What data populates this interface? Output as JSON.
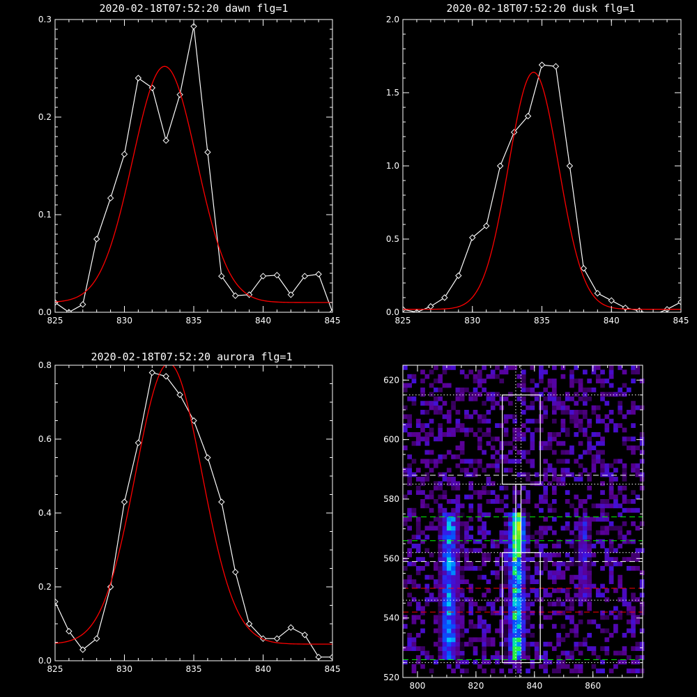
{
  "chart_data": [
    {
      "id": "dawn",
      "type": "line",
      "title": "2020-02-18T07:52:20 dawn flg=1",
      "xlim": [
        825,
        845
      ],
      "ylim": [
        0,
        0.3
      ],
      "xticks": [
        825,
        830,
        835,
        840,
        845
      ],
      "xtick_labels": [
        "825",
        "830",
        "835",
        "840",
        "845"
      ],
      "yticks": [
        0,
        0.1,
        0.2,
        0.3
      ],
      "ytick_labels": [
        "0.0",
        "0.1",
        "0.2",
        "0.3"
      ],
      "x_minor": 1,
      "y_minor": 0.01,
      "series": [
        {
          "style": "line-diamond",
          "color": "#ffffff",
          "x": [
            825,
            826,
            827,
            828,
            829,
            830,
            831,
            832,
            833,
            834,
            835,
            836,
            837,
            838,
            839,
            840,
            841,
            842,
            843,
            844,
            845
          ],
          "y": [
            0.01,
            0.0,
            0.008,
            0.075,
            0.117,
            0.162,
            0.24,
            0.23,
            0.176,
            0.223,
            0.293,
            0.164,
            0.037,
            0.017,
            0.018,
            0.037,
            0.038,
            0.018,
            0.037,
            0.039,
            0.0
          ]
        },
        {
          "style": "gaussian",
          "color": "#ff0000",
          "amplitude": 0.242,
          "center": 832.9,
          "sigma": 2.3,
          "baseline": 0.01,
          "x_range": [
            825,
            845
          ]
        }
      ]
    },
    {
      "id": "dusk",
      "type": "line",
      "title": "2020-02-18T07:52:20 dusk flg=1",
      "xlim": [
        825,
        845
      ],
      "ylim": [
        0,
        2.0
      ],
      "xticks": [
        825,
        830,
        835,
        840,
        845
      ],
      "xtick_labels": [
        "825",
        "830",
        "835",
        "840",
        "845"
      ],
      "yticks": [
        0,
        0.5,
        1.0,
        1.5,
        2.0
      ],
      "ytick_labels": [
        "0.0",
        "0.5",
        "1.0",
        "1.5",
        "2.0"
      ],
      "x_minor": 1,
      "y_minor": 0.1,
      "series": [
        {
          "style": "line-diamond",
          "color": "#ffffff",
          "x": [
            825,
            826,
            827,
            828,
            829,
            830,
            831,
            832,
            833,
            834,
            835,
            836,
            837,
            838,
            839,
            840,
            841,
            842,
            843,
            844,
            845
          ],
          "y": [
            0.02,
            0.0,
            0.04,
            0.1,
            0.25,
            0.51,
            0.59,
            1.0,
            1.23,
            1.34,
            1.69,
            1.68,
            1.0,
            0.3,
            0.13,
            0.08,
            0.03,
            0.01,
            -0.02,
            0.02,
            0.07
          ]
        },
        {
          "style": "gaussian",
          "color": "#ff0000",
          "amplitude": 1.62,
          "center": 834.4,
          "sigma": 1.8,
          "baseline": 0.02,
          "x_range": [
            825,
            845
          ]
        }
      ]
    },
    {
      "id": "aurora",
      "type": "line",
      "title": "2020-02-18T07:52:20 aurora flg=1",
      "xlim": [
        825,
        845
      ],
      "ylim": [
        0,
        0.8
      ],
      "xticks": [
        825,
        830,
        835,
        840,
        845
      ],
      "xtick_labels": [
        "825",
        "830",
        "835",
        "840",
        "845"
      ],
      "yticks": [
        0,
        0.2,
        0.4,
        0.6,
        0.8
      ],
      "ytick_labels": [
        "0.0",
        "0.2",
        "0.4",
        "0.6",
        "0.8"
      ],
      "x_minor": 1,
      "y_minor": 0.05,
      "series": [
        {
          "style": "line-diamond",
          "color": "#ffffff",
          "x": [
            825,
            826,
            827,
            828,
            829,
            830,
            831,
            832,
            833,
            834,
            835,
            836,
            837,
            838,
            839,
            840,
            841,
            842,
            843,
            844,
            845
          ],
          "y": [
            0.16,
            0.08,
            0.03,
            0.06,
            0.2,
            0.43,
            0.59,
            0.78,
            0.77,
            0.72,
            0.65,
            0.55,
            0.43,
            0.24,
            0.1,
            0.06,
            0.06,
            0.09,
            0.07,
            0.01,
            0.01
          ]
        },
        {
          "style": "gaussian",
          "color": "#ff0000",
          "amplitude": 0.76,
          "center": 833.2,
          "sigma": 2.4,
          "baseline": 0.045,
          "x_range": [
            825,
            845
          ]
        }
      ]
    },
    {
      "id": "image",
      "type": "heatmap",
      "colormap": "rainbow-on-black",
      "xlim": [
        795,
        877
      ],
      "ylim": [
        520,
        625
      ],
      "xticks": [
        800,
        820,
        840,
        860
      ],
      "xtick_labels": [
        "800",
        "820",
        "840",
        "860"
      ],
      "yticks": [
        520,
        540,
        560,
        580,
        600,
        620
      ],
      "ytick_labels": [
        "520",
        "540",
        "560",
        "580",
        "600",
        "620"
      ],
      "x_minor": 5,
      "y_minor": 5,
      "pixel_size": [
        1.5,
        1.5
      ],
      "columns": [
        {
          "center": 811,
          "width": 3.5,
          "y_range": [
            526,
            575
          ],
          "peak": 0.55
        },
        {
          "center": 834,
          "width": 3.0,
          "y_range": [
            526,
            575
          ],
          "peak": 0.75,
          "hotspot": {
            "y": 568,
            "value": 1.0,
            "sigma": 3.5
          }
        },
        {
          "center": 857,
          "width": 2.5,
          "y_range": [
            545,
            573
          ],
          "peak": 0.35
        }
      ],
      "rectangles": [
        {
          "x": [
            829,
            842
          ],
          "y": [
            585,
            615
          ],
          "color": "#ffffff"
        },
        {
          "x": [
            829,
            842
          ],
          "y": [
            525,
            562
          ],
          "color": "#ffffff"
        },
        {
          "x": [
            833.6,
            835.4
          ],
          "y": [
            562,
            585
          ],
          "color": "#ffffff"
        }
      ],
      "hlines": [
        {
          "y": 615,
          "color": "#ffffff",
          "style": "dotted"
        },
        {
          "y": 588,
          "color": "#ffffff",
          "style": "dashed"
        },
        {
          "y": 585,
          "color": "#ffffff",
          "style": "dotted"
        },
        {
          "y": 574,
          "color": "#00ff00",
          "style": "dashed"
        },
        {
          "y": 566,
          "color": "#00ff00",
          "style": "dashed"
        },
        {
          "y": 562,
          "color": "#ffffff",
          "style": "dotted"
        },
        {
          "y": 559,
          "color": "#ffffff",
          "style": "dashed"
        },
        {
          "y": 550,
          "color": "#ff0000",
          "style": "dashed"
        },
        {
          "y": 546,
          "color": "#ffffff",
          "style": "dotted"
        },
        {
          "y": 542,
          "color": "#ff0000",
          "style": "dashed"
        },
        {
          "y": 526,
          "color": "#00ff00",
          "style": "dashed"
        },
        {
          "y": 525,
          "color": "#ffffff",
          "style": "dotted"
        }
      ],
      "vlines": [
        {
          "x": 833.6,
          "color": "#ffffff",
          "style": "dotted"
        },
        {
          "x": 835.4,
          "color": "#ffffff",
          "style": "dotted"
        }
      ]
    }
  ]
}
